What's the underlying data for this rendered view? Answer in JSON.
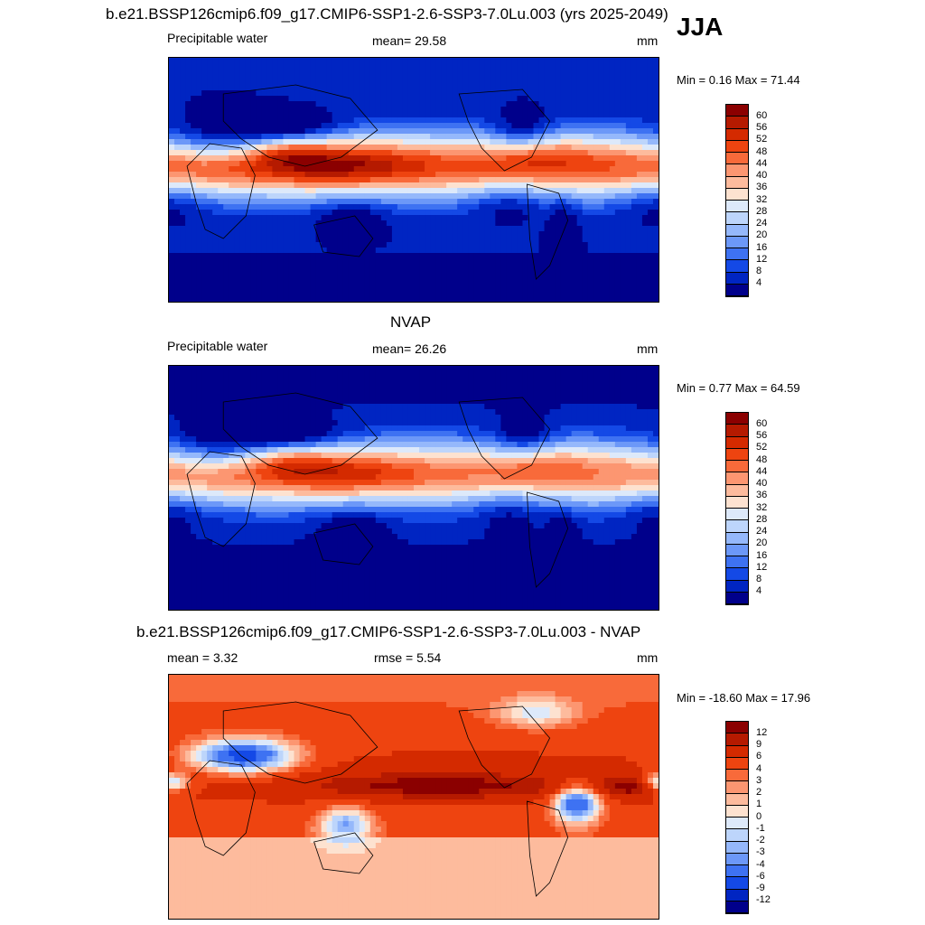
{
  "season": "JJA",
  "panels": [
    {
      "title": "b.e21.BSSP126cmip6.f09_g17.CMIP6-SSP1-2.6-SSP3-7.0Lu.003 (yrs 2025-2049)",
      "left_label": "Precipitable water",
      "center_label": "mean=  29.58",
      "units": "mm",
      "minmax": "Min =   0.16 Max =  71.44",
      "kind": "model"
    },
    {
      "title": "NVAP",
      "left_label": "Precipitable water",
      "center_label": "mean=  26.26",
      "units": "mm",
      "minmax": "Min =   0.77 Max =  64.59",
      "kind": "obs"
    },
    {
      "title": "b.e21.BSSP126cmip6.f09_g17.CMIP6-SSP1-2.6-SSP3-7.0Lu.003 - NVAP",
      "left_label": "mean =   3.32",
      "center_label": "rmse =   5.54",
      "units": "mm",
      "minmax": "Min = -18.60 Max =  17.96",
      "kind": "diff"
    }
  ],
  "colorbar_abs": {
    "labels": [
      "60",
      "56",
      "52",
      "48",
      "44",
      "40",
      "36",
      "32",
      "28",
      "24",
      "20",
      "16",
      "12",
      "8",
      "4"
    ],
    "colors": [
      "#8b0000",
      "#b51a00",
      "#d42a00",
      "#ee4410",
      "#f86a3a",
      "#fc9671",
      "#fdbb9d",
      "#fde2d0",
      "#dde9fa",
      "#bdd5fb",
      "#95b8fb",
      "#6c98f8",
      "#3e72f2",
      "#1449e6",
      "#0025c2",
      "#00008b"
    ]
  },
  "colorbar_diff": {
    "labels": [
      "12",
      "9",
      "6",
      "4",
      "3",
      "2",
      "1",
      "0",
      "-1",
      "-2",
      "-3",
      "-4",
      "-6",
      "-9",
      "-12"
    ],
    "colors": [
      "#8b0000",
      "#b51a00",
      "#d42a00",
      "#ee4410",
      "#f86a3a",
      "#fc9671",
      "#fdbb9d",
      "#fde2d0",
      "#dde9fa",
      "#bdd5fb",
      "#95b8fb",
      "#6c98f8",
      "#3e72f2",
      "#1449e6",
      "#0025c2",
      "#00008b"
    ]
  }
}
